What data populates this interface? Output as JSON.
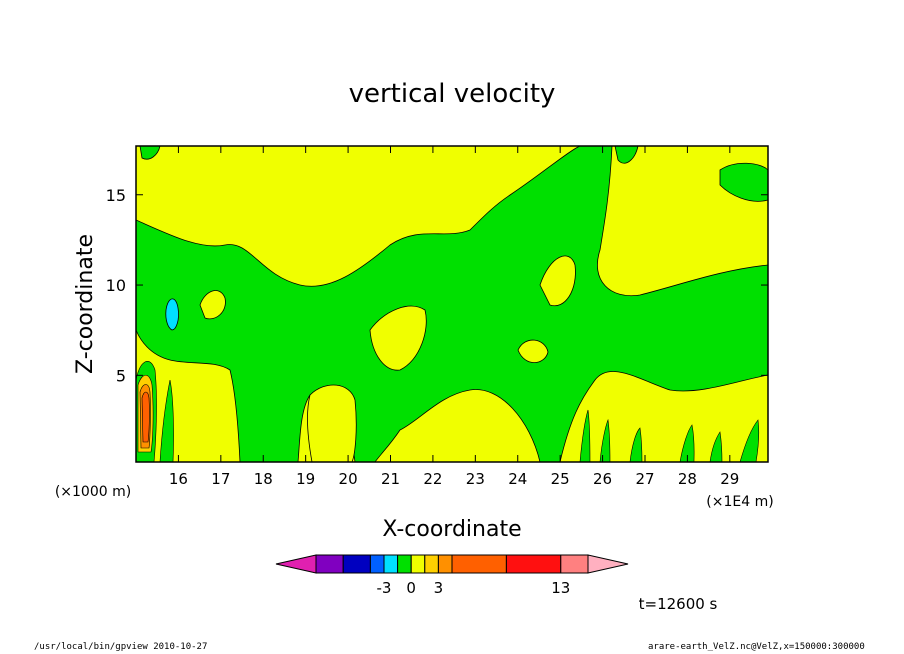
{
  "chart_data": {
    "type": "heatmap",
    "title": "vertical velocity",
    "xlabel": "X-coordinate",
    "ylabel": "Z-coordinate",
    "x_unit_label": "(×1E4 m)",
    "y_unit_label": "(×1000 m)",
    "xlim": [
      15.0,
      29.9
    ],
    "ylim": [
      0.2,
      17.7
    ],
    "xticks": [
      16,
      17,
      18,
      19,
      20,
      21,
      22,
      23,
      24,
      25,
      26,
      27,
      28,
      29
    ],
    "yticks": [
      5,
      10,
      15
    ],
    "colorbar": {
      "tick_labels": [
        "-3",
        "0",
        "3",
        "13"
      ],
      "colors": [
        "#e020b0",
        "#8000c0",
        "#0000c0",
        "#0060ff",
        "#00e0ff",
        "#00e000",
        "#f0ff00",
        "#ffd000",
        "#ff9000",
        "#ff6000",
        "#ff1010",
        "#ff8080",
        "#ffb0c0"
      ]
    },
    "field_colors": {
      "background_positive": "#f0ff00",
      "weak_negative": "#00e000",
      "negative": "#00e0ff",
      "strong_positive": "#ff6000",
      "moderate_positive": "#ffd000"
    },
    "time_label": "t=12600 s"
  },
  "footer": {
    "left": "/usr/local/bin/gpview  2010-10-27",
    "right": "arare-earth_VelZ.nc@VelZ,x=150000:300000"
  }
}
